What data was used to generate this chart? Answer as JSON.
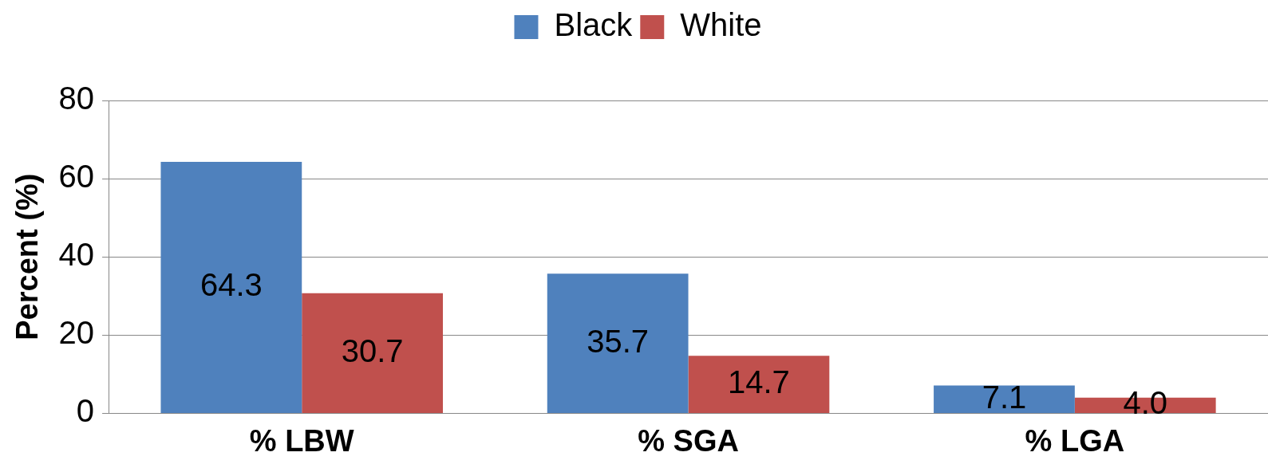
{
  "chart_data": {
    "type": "bar",
    "ylabel": "Percent (%)",
    "categories": [
      "% LBW",
      "% SGA",
      "% LGA"
    ],
    "series": [
      {
        "name": "Black",
        "color": "#4f81bd",
        "values": [
          64.3,
          35.7,
          7.1
        ],
        "value_labels": [
          "64.3",
          "35.7",
          "7.1"
        ]
      },
      {
        "name": "White",
        "color": "#c0504d",
        "values": [
          30.7,
          14.7,
          4.0
        ],
        "value_labels": [
          "30.7",
          "14.7",
          "4.0"
        ]
      }
    ],
    "ylim": [
      0,
      80
    ],
    "yticks": [
      0,
      20,
      40,
      60,
      80
    ],
    "grid": "y",
    "legend": "top"
  }
}
